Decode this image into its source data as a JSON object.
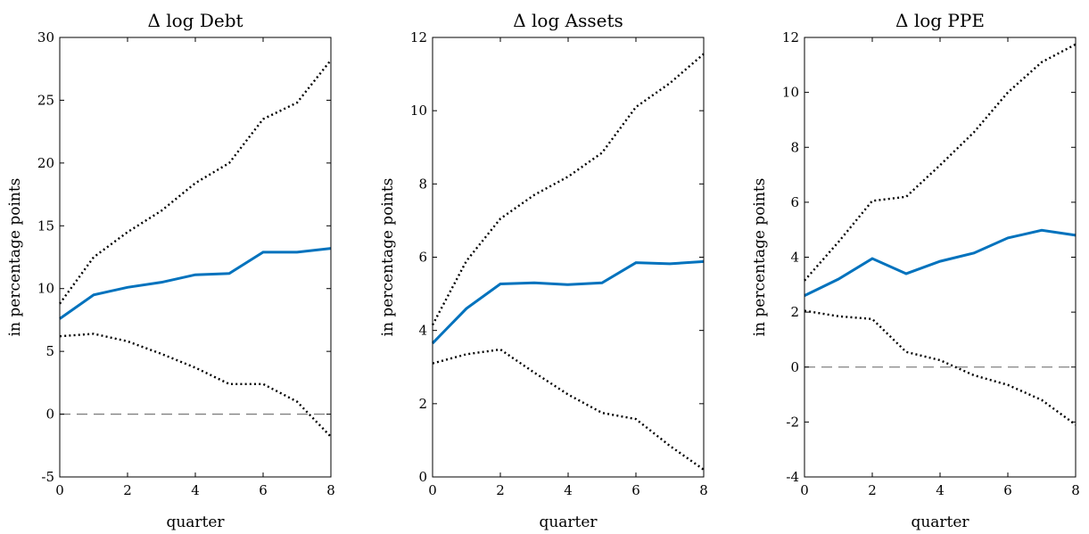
{
  "chart_data": [
    {
      "type": "line",
      "title": "Δ log Debt",
      "xlabel": "quarter",
      "ylabel": "in percentage points",
      "x": [
        0,
        1,
        2,
        3,
        4,
        5,
        6,
        7,
        8
      ],
      "xlim": [
        0,
        8
      ],
      "ylim": [
        -5,
        30
      ],
      "xticks": [
        0,
        2,
        4,
        6,
        8
      ],
      "yticks": [
        -5,
        0,
        5,
        10,
        15,
        20,
        25,
        30
      ],
      "zero_line": true,
      "series": [
        {
          "style": "solid",
          "color": "#0072BD",
          "values": [
            7.6,
            9.5,
            10.1,
            10.5,
            11.1,
            11.2,
            12.9,
            12.9,
            13.2
          ]
        },
        {
          "style": "dotted",
          "color": "#000000",
          "values": [
            8.8,
            12.5,
            14.5,
            16.2,
            18.4,
            20.0,
            23.5,
            24.8,
            28.2
          ]
        },
        {
          "style": "dotted",
          "color": "#000000",
          "values": [
            6.2,
            6.4,
            5.8,
            4.8,
            3.7,
            2.4,
            2.4,
            1.0,
            -1.8
          ]
        }
      ]
    },
    {
      "type": "line",
      "title": "Δ log Assets",
      "xlabel": "quarter",
      "ylabel": "in percentage points",
      "x": [
        0,
        1,
        2,
        3,
        4,
        5,
        6,
        7,
        8
      ],
      "xlim": [
        0,
        8
      ],
      "ylim": [
        0,
        12
      ],
      "xticks": [
        0,
        2,
        4,
        6,
        8
      ],
      "yticks": [
        0,
        2,
        4,
        6,
        8,
        10,
        12
      ],
      "zero_line": false,
      "series": [
        {
          "style": "solid",
          "color": "#0072BD",
          "values": [
            3.65,
            4.6,
            5.27,
            5.3,
            5.25,
            5.3,
            5.85,
            5.82,
            5.88
          ]
        },
        {
          "style": "dotted",
          "color": "#000000",
          "values": [
            4.15,
            5.9,
            7.05,
            7.7,
            8.2,
            8.85,
            10.1,
            10.75,
            11.55
          ]
        },
        {
          "style": "dotted",
          "color": "#000000",
          "values": [
            3.1,
            3.35,
            3.48,
            2.85,
            2.25,
            1.75,
            1.58,
            0.85,
            0.2
          ]
        }
      ]
    },
    {
      "type": "line",
      "title": "Δ log PPE",
      "xlabel": "quarter",
      "ylabel": "in percentage points",
      "x": [
        0,
        1,
        2,
        3,
        4,
        5,
        6,
        7,
        8
      ],
      "xlim": [
        0,
        8
      ],
      "ylim": [
        -4,
        12
      ],
      "xticks": [
        0,
        2,
        4,
        6,
        8
      ],
      "yticks": [
        -4,
        -2,
        0,
        2,
        4,
        6,
        8,
        10,
        12
      ],
      "zero_line": true,
      "series": [
        {
          "style": "solid",
          "color": "#0072BD",
          "values": [
            2.6,
            3.2,
            3.95,
            3.4,
            3.85,
            4.15,
            4.7,
            4.98,
            4.8
          ]
        },
        {
          "style": "dotted",
          "color": "#000000",
          "values": [
            3.15,
            4.55,
            6.05,
            6.2,
            7.35,
            8.55,
            10.0,
            11.1,
            11.75
          ]
        },
        {
          "style": "dotted",
          "color": "#000000",
          "values": [
            2.05,
            1.85,
            1.75,
            0.55,
            0.25,
            -0.3,
            -0.65,
            -1.2,
            -2.1
          ]
        }
      ]
    }
  ]
}
